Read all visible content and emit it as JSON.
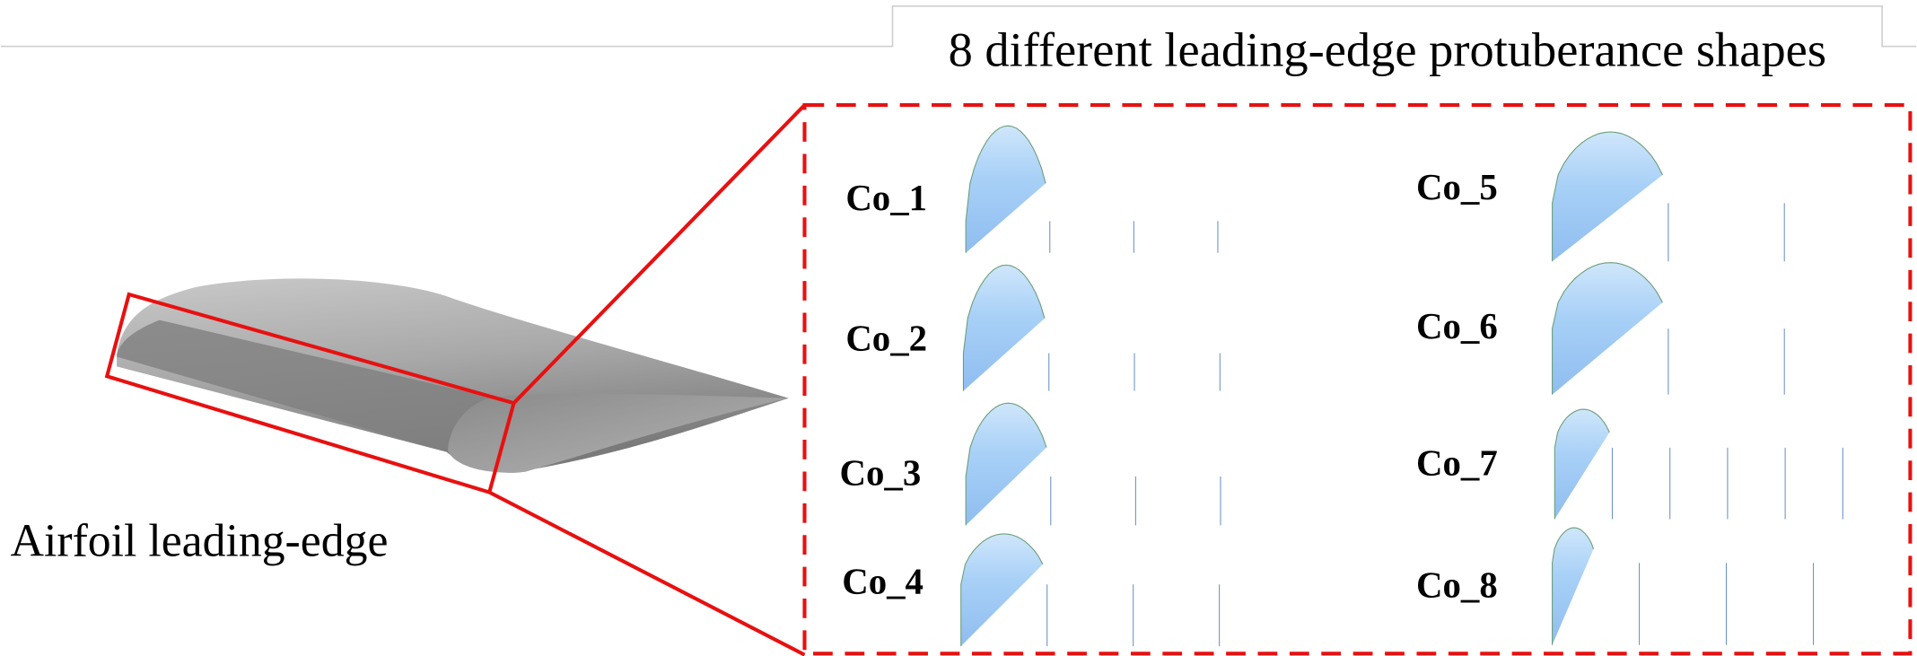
{
  "header": {
    "title": "8 different leading-edge protuberance shapes"
  },
  "airfoil_label": "Airfoil leading-edge",
  "shapes": [
    {
      "label": "Co_1"
    },
    {
      "label": "Co_2"
    },
    {
      "label": "Co_3"
    },
    {
      "label": "Co_4"
    },
    {
      "label": "Co_5"
    },
    {
      "label": "Co_6"
    },
    {
      "label": "Co_7"
    },
    {
      "label": "Co_8"
    }
  ]
}
